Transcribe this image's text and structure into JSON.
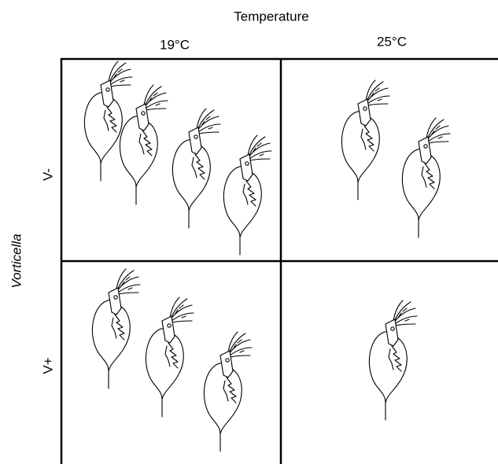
{
  "title": "Temperature",
  "columns": [
    "19°C",
    "25°C"
  ],
  "row_axis_label": "Vorticella",
  "rows": [
    "V-",
    "V+"
  ]
}
